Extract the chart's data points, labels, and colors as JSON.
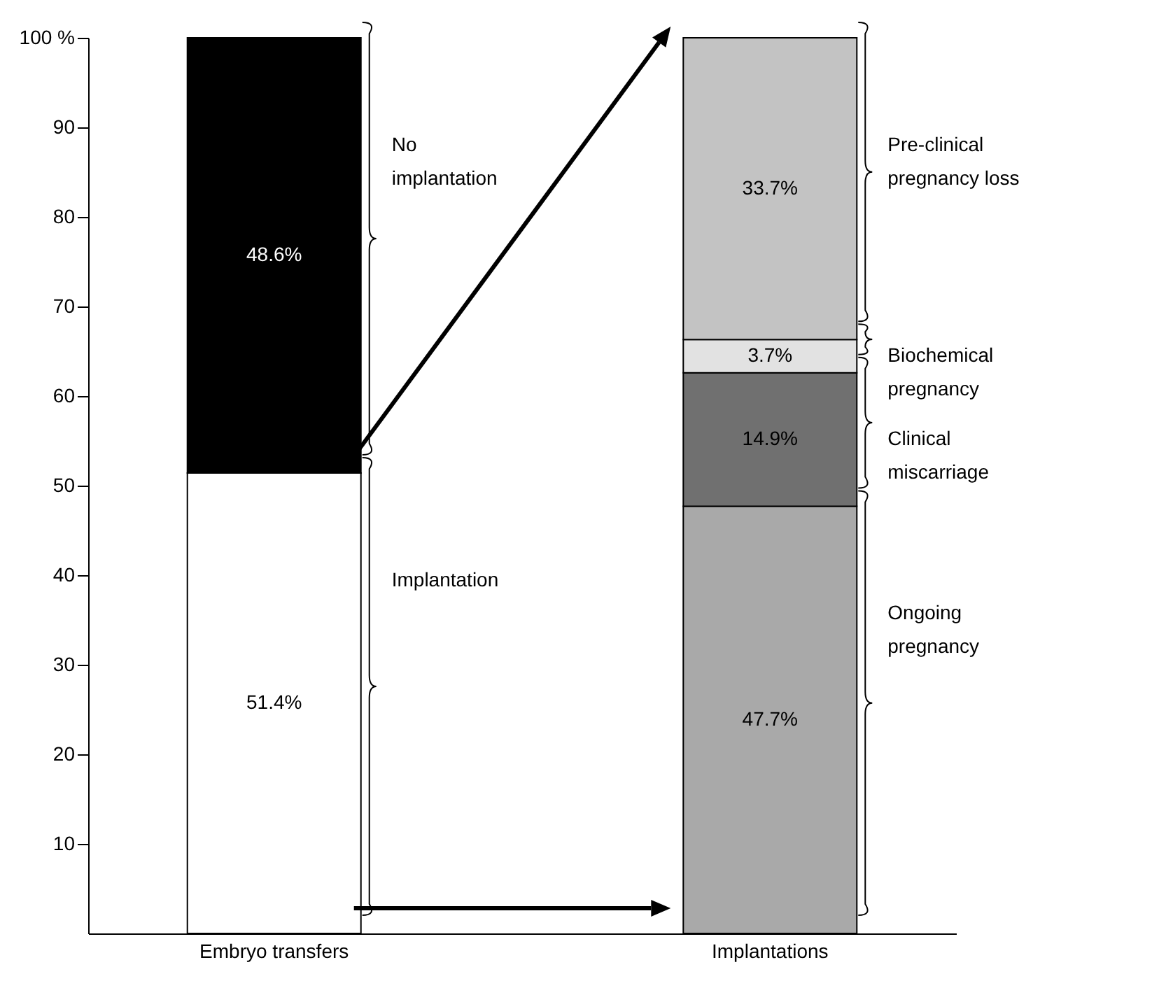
{
  "chart_data": {
    "type": "bar",
    "stacked": true,
    "categories": [
      "Embryo transfers",
      "Implantations"
    ],
    "series": [
      {
        "name": "Implantation",
        "color": "#ffffff",
        "values": [
          51.4,
          null
        ],
        "value_labels": [
          "51.4%",
          null
        ]
      },
      {
        "name": "No implantation",
        "color": "#000000",
        "values": [
          48.6,
          null
        ],
        "value_labels": [
          "48.6%",
          null
        ]
      },
      {
        "name": "Ongoing pregnancy",
        "color": "#a9a9a9",
        "values": [
          null,
          47.7
        ],
        "value_labels": [
          null,
          "47.7%"
        ]
      },
      {
        "name": "Clinical miscarriage",
        "color": "#707070",
        "values": [
          null,
          14.9
        ],
        "value_labels": [
          null,
          "14.9%"
        ]
      },
      {
        "name": "Biochemical pregnancy",
        "color": "#e2e2e2",
        "values": [
          null,
          3.7
        ],
        "value_labels": [
          null,
          "3.7%"
        ]
      },
      {
        "name": "Pre-clinical pregnancy loss",
        "color": "#c3c3c3",
        "values": [
          null,
          33.7
        ],
        "value_labels": [
          null,
          "33.7%"
        ]
      }
    ],
    "ylim": [
      0,
      100
    ],
    "yticks": [
      10,
      20,
      30,
      40,
      50,
      60,
      70,
      80,
      90,
      {
        "value": 100,
        "label": "100 %"
      }
    ],
    "grid": false,
    "legend": false
  }
}
